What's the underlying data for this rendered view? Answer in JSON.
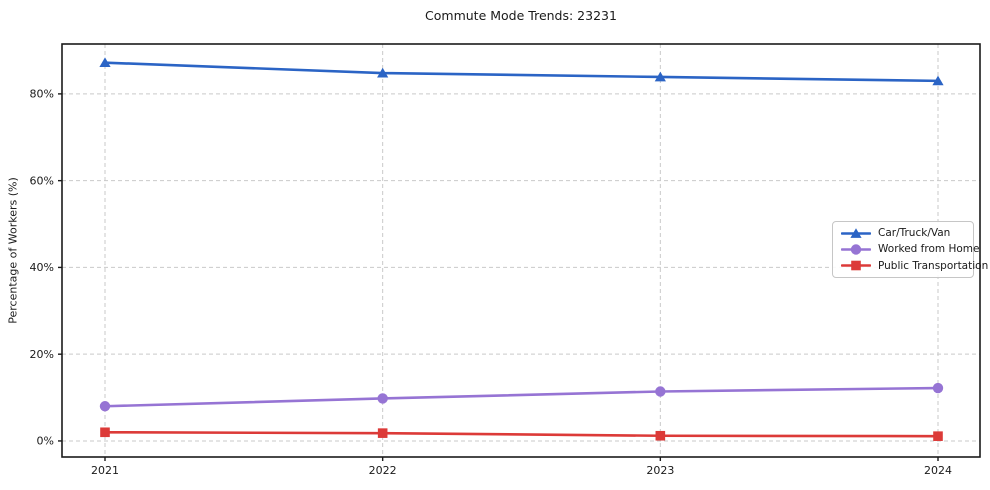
{
  "title": "Commute Mode Trends: 23231",
  "chart_data": {
    "type": "line",
    "title": "Commute Mode Trends: 23231",
    "xlabel": "",
    "ylabel": "Percentage of Workers (%)",
    "categories": [
      "2021",
      "2022",
      "2023",
      "2024"
    ],
    "series": [
      {
        "name": "Car/Truck/Van",
        "color": "#2b64c5",
        "marker": "triangle",
        "values": [
          87.2,
          84.8,
          83.9,
          83.0
        ]
      },
      {
        "name": "Worked from Home",
        "color": "#9674d4",
        "marker": "circle",
        "values": [
          8.0,
          9.8,
          11.4,
          12.2
        ]
      },
      {
        "name": "Public Transportation",
        "color": "#dc3a38",
        "marker": "square",
        "values": [
          2.0,
          1.8,
          1.2,
          1.1
        ]
      }
    ],
    "y_tick_labels": [
      "0%",
      "20%",
      "40%",
      "60%",
      "80%"
    ],
    "y_tick_values": [
      0,
      20,
      40,
      60,
      80
    ],
    "ylim": [
      -3.7,
      91.5
    ],
    "grid": "dashed",
    "grid_color": "#c9c9c9",
    "legend_position": "center-right",
    "frame_color": "#1a1a1a"
  }
}
